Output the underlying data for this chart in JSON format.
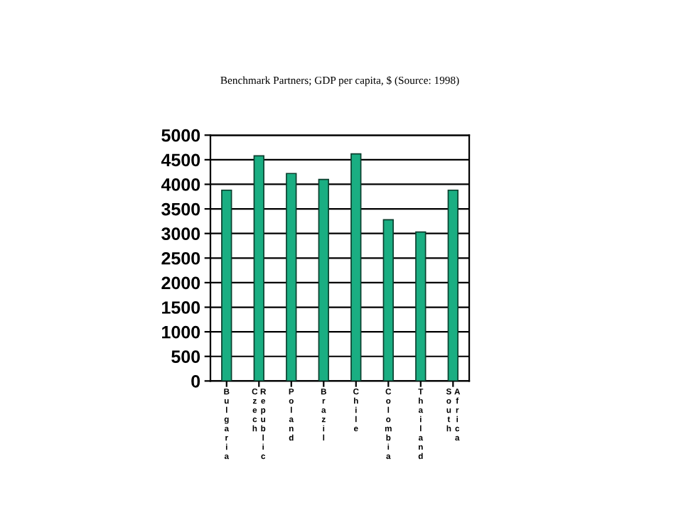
{
  "chart_data": {
    "type": "bar",
    "title": "Benchmark Partners; GDP per capita, $ (Source: 1998)",
    "categories": [
      "Bulgaria",
      "Czech Republic",
      "Poland",
      "Brazil",
      "Chile",
      "Colombia",
      "Thailand",
      "South Africa"
    ],
    "values": [
      3880,
      4580,
      4220,
      4100,
      4620,
      3280,
      3030,
      3880
    ],
    "color": "#1aae82",
    "ylim": [
      0,
      5000
    ],
    "yticks": [
      0,
      500,
      1000,
      1500,
      2000,
      2500,
      3000,
      3500,
      4000,
      4500,
      5000
    ],
    "grid": "y"
  }
}
